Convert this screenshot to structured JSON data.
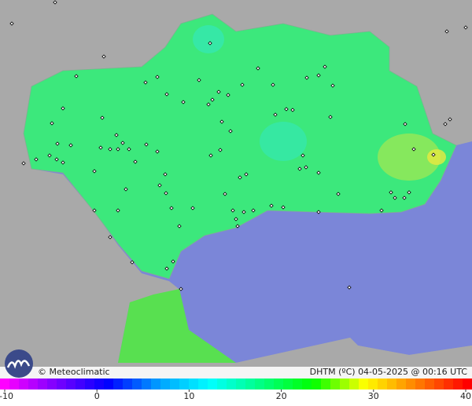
{
  "brand": "© Meteoclimatic",
  "caption": "DHTM (ºC) 04-05-2025 @ 00:16 UTC",
  "colorbar": {
    "min": -10,
    "max": 40,
    "ticks": [
      -10,
      0,
      10,
      20,
      30,
      40
    ],
    "colors": [
      "#ff00ff",
      "#7a00ff",
      "#0000ff",
      "#00a0ff",
      "#00ffff",
      "#00ff80",
      "#00ff00",
      "#ffff00",
      "#ff8000",
      "#ff0000"
    ]
  }
}
